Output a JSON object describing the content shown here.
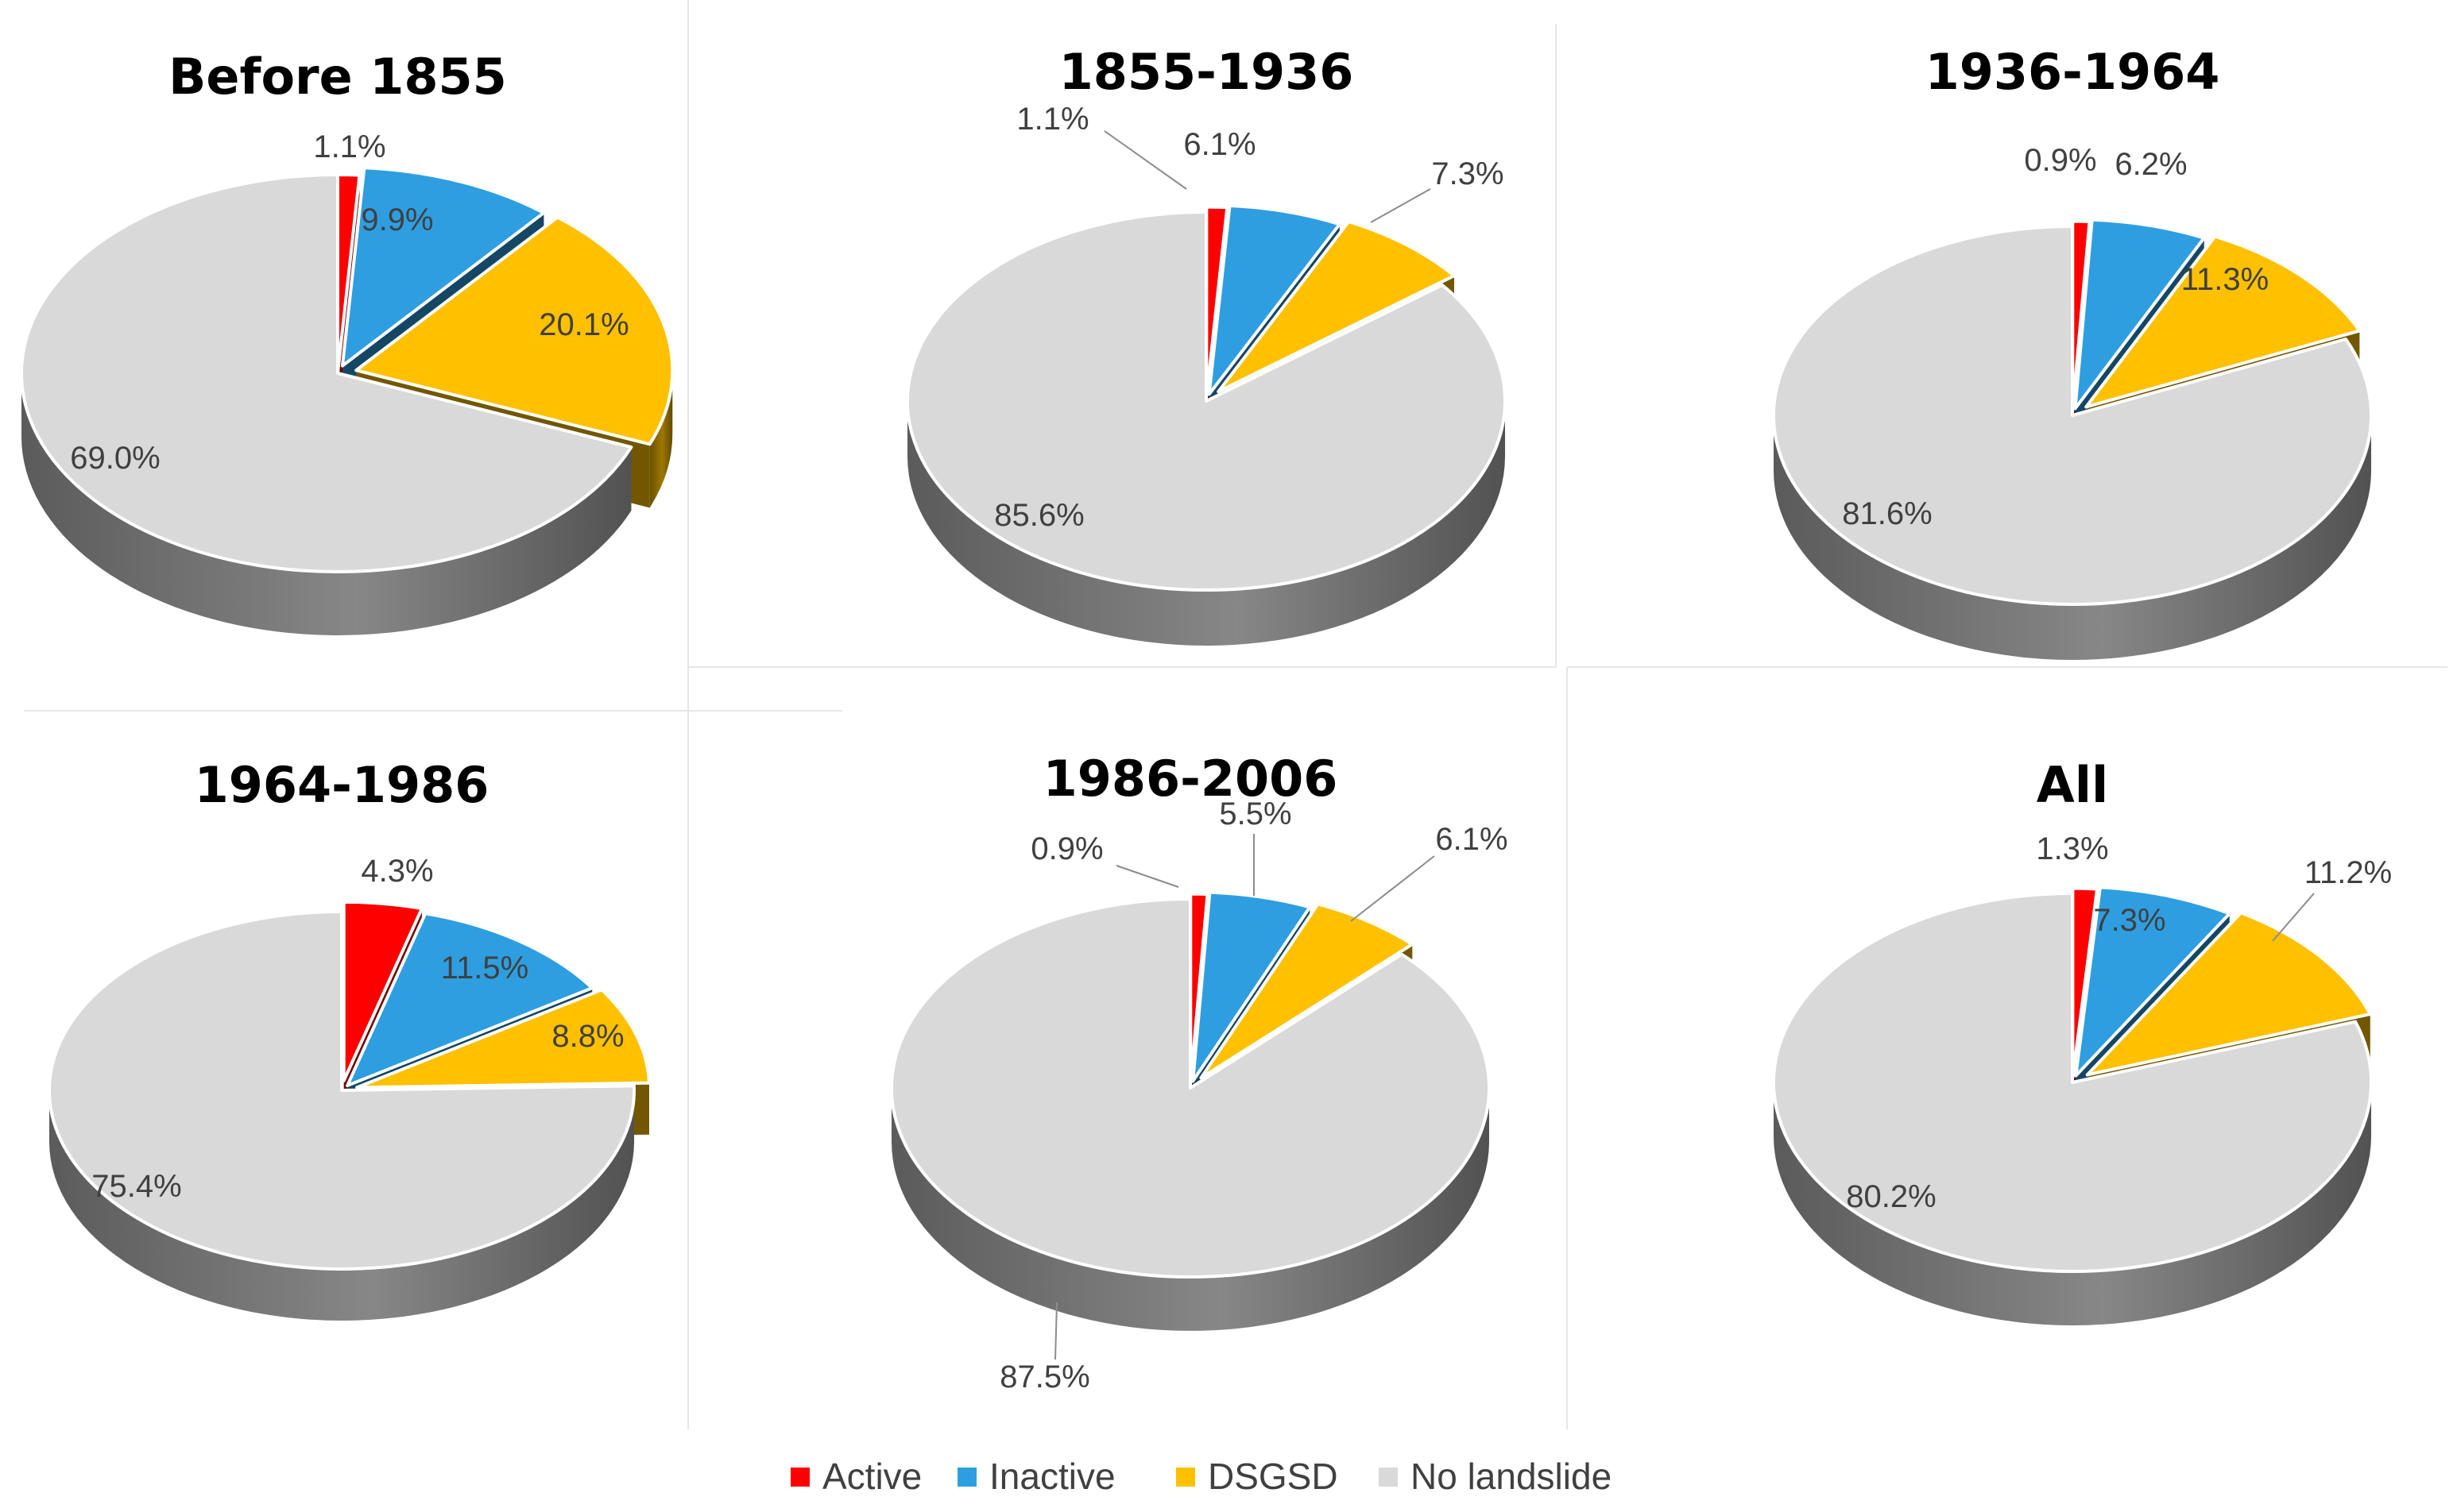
{
  "chart_data": {
    "type": "pie",
    "legend": {
      "placement": "bottom",
      "entries": [
        {
          "name": "Active",
          "color": "#ff0000"
        },
        {
          "name": "Inactive",
          "color": "#2e9ee0"
        },
        {
          "name": "DSGSD",
          "color": "#ffc000"
        },
        {
          "name": "No landslide",
          "color": "#d9d9d9"
        }
      ]
    },
    "charts": [
      {
        "title": "Before 1855",
        "slices": [
          {
            "category": "Active",
            "value": 1.1,
            "label": "1.1%"
          },
          {
            "category": "Inactive",
            "value": 9.9,
            "label": "9.9%"
          },
          {
            "category": "DSGSD",
            "value": 20.1,
            "label": "20.1%"
          },
          {
            "category": "No landslide",
            "value": 69.0,
            "label": "69.0%"
          }
        ]
      },
      {
        "title": "1855-1936",
        "slices": [
          {
            "category": "Active",
            "value": 1.1,
            "label": "1.1%"
          },
          {
            "category": "Inactive",
            "value": 6.1,
            "label": "6.1%"
          },
          {
            "category": "DSGSD",
            "value": 7.3,
            "label": "7.3%"
          },
          {
            "category": "No landslide",
            "value": 85.6,
            "label": "85.6%"
          }
        ]
      },
      {
        "title": "1936-1964",
        "slices": [
          {
            "category": "Active",
            "value": 0.9,
            "label": "0.9%"
          },
          {
            "category": "Inactive",
            "value": 6.2,
            "label": "6.2%"
          },
          {
            "category": "DSGSD",
            "value": 11.3,
            "label": "11.3%"
          },
          {
            "category": "No landslide",
            "value": 81.6,
            "label": "81.6%"
          }
        ]
      },
      {
        "title": "1964-1986",
        "slices": [
          {
            "category": "Active",
            "value": 4.3,
            "label": "4.3%"
          },
          {
            "category": "Inactive",
            "value": 11.5,
            "label": "11.5%"
          },
          {
            "category": "DSGSD",
            "value": 8.8,
            "label": "8.8%"
          },
          {
            "category": "No landslide",
            "value": 75.4,
            "label": "75.4%"
          }
        ]
      },
      {
        "title": "1986-2006",
        "slices": [
          {
            "category": "Active",
            "value": 0.9,
            "label": "0.9%"
          },
          {
            "category": "Inactive",
            "value": 5.5,
            "label": "5.5%"
          },
          {
            "category": "DSGSD",
            "value": 6.1,
            "label": "6.1%"
          },
          {
            "category": "No landslide",
            "value": 87.5,
            "label": "87.5%"
          }
        ]
      },
      {
        "title": "All",
        "slices": [
          {
            "category": "Active",
            "value": 1.3,
            "label": "1.3%"
          },
          {
            "category": "Inactive",
            "value": 7.3,
            "label": "7.3%"
          },
          {
            "category": "DSGSD",
            "value": 11.2,
            "label": "11.2%"
          },
          {
            "category": "No landslide",
            "value": 80.2,
            "label": "80.2%"
          }
        ]
      }
    ]
  }
}
